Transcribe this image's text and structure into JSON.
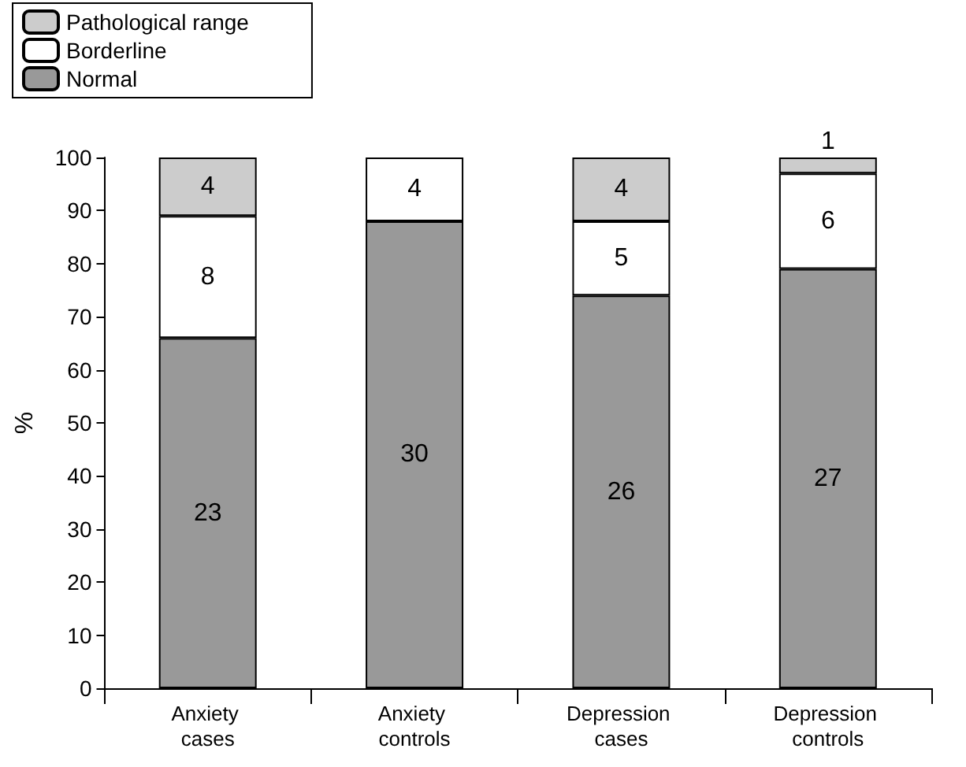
{
  "chart_data": {
    "type": "bar",
    "stacked": true,
    "ylabel": "%",
    "categories": [
      "Anxiety cases",
      "Anxiety controls",
      "Depression cases",
      "Depression controls"
    ],
    "series": [
      {
        "name": "Normal",
        "color": "#999999",
        "values": [
          66,
          88,
          74,
          79
        ]
      },
      {
        "name": "Borderline",
        "color": "#ffffff",
        "values": [
          23,
          12,
          14,
          18
        ]
      },
      {
        "name": "Pathological range",
        "color": "#cccccc",
        "values": [
          11,
          null,
          12,
          3
        ]
      }
    ],
    "annotations": [
      "23",
      "8",
      "4",
      "30",
      "4",
      "26",
      "5",
      "4",
      "27",
      "6",
      "1"
    ],
    "ylim": [
      0,
      100
    ],
    "yticks": [
      0,
      10,
      20,
      30,
      40,
      50,
      60,
      70,
      80,
      90,
      100
    ],
    "grid": false,
    "legend": "top left"
  }
}
